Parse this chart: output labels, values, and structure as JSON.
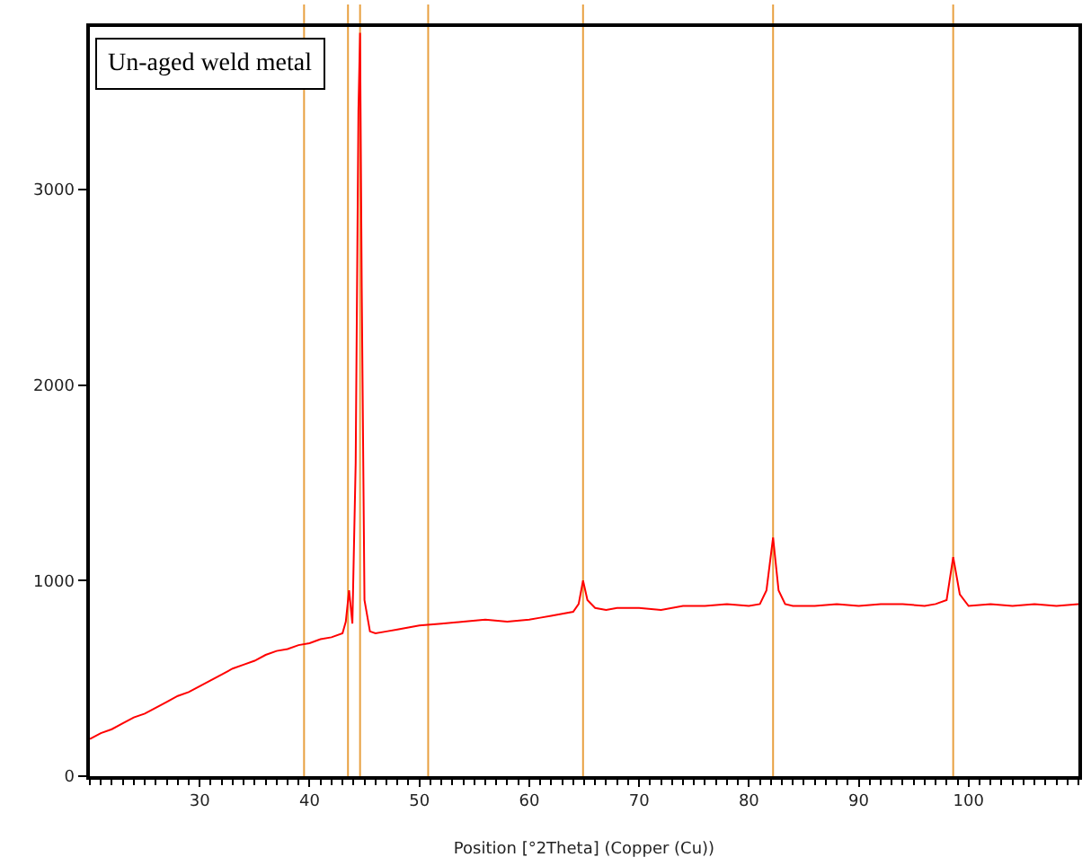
{
  "chart_data": {
    "type": "line",
    "xlabel": "Position [°2Theta] (Copper (Cu))",
    "annotations": [
      "Un-aged weld metal"
    ],
    "series": [
      {
        "color": "#ff0000",
        "x": [
          20,
          21,
          22,
          23,
          24,
          25,
          26,
          27,
          28,
          29,
          30,
          31,
          32,
          33,
          34,
          35,
          36,
          37,
          38,
          39,
          40,
          41,
          42,
          43,
          43.3,
          43.6,
          43.9,
          44.2,
          44.45,
          44.6,
          44.75,
          45,
          45.5,
          46,
          47,
          48,
          49,
          50,
          52,
          54,
          56,
          58,
          60,
          61,
          62,
          63,
          64,
          64.5,
          64.9,
          65.3,
          66,
          67,
          68,
          70,
          72,
          74,
          76,
          78,
          80,
          81,
          81.6,
          82.2,
          82.7,
          83.3,
          84,
          86,
          88,
          90,
          92,
          94,
          96,
          97,
          98,
          98.6,
          99.2,
          100,
          102,
          104,
          106,
          108,
          110
        ],
        "values": [
          190,
          220,
          240,
          270,
          300,
          320,
          350,
          380,
          410,
          430,
          460,
          490,
          520,
          550,
          570,
          590,
          620,
          640,
          650,
          670,
          680,
          700,
          710,
          730,
          790,
          950,
          780,
          1600,
          3400,
          3800,
          2500,
          900,
          740,
          730,
          740,
          750,
          760,
          770,
          780,
          790,
          800,
          790,
          800,
          810,
          820,
          830,
          840,
          880,
          1000,
          900,
          860,
          850,
          860,
          860,
          850,
          870,
          870,
          880,
          870,
          880,
          950,
          1220,
          950,
          880,
          870,
          870,
          880,
          870,
          880,
          880,
          870,
          880,
          900,
          1120,
          930,
          870,
          880,
          870,
          880,
          870,
          880
        ]
      }
    ],
    "xlim": [
      20,
      110
    ],
    "xticks": [
      30,
      40,
      50,
      60,
      70,
      80,
      90,
      100
    ],
    "ylim": [
      0,
      3830
    ],
    "yticks": [
      0,
      1000,
      2000,
      3000
    ],
    "ref_lines": [
      {
        "axis": "x",
        "value": 39.5,
        "color": "#e8a040"
      },
      {
        "axis": "x",
        "value": 43.5,
        "color": "#e8a040"
      },
      {
        "axis": "x",
        "value": 44.6,
        "color": "#e8a040"
      },
      {
        "axis": "x",
        "value": 50.8,
        "color": "#e8a040"
      },
      {
        "axis": "x",
        "value": 64.9,
        "color": "#e8a040"
      },
      {
        "axis": "x",
        "value": 82.2,
        "color": "#e8a040"
      },
      {
        "axis": "x",
        "value": 98.6,
        "color": "#e8a040"
      }
    ],
    "grid": false,
    "marker": "none",
    "line_style": "solid"
  }
}
